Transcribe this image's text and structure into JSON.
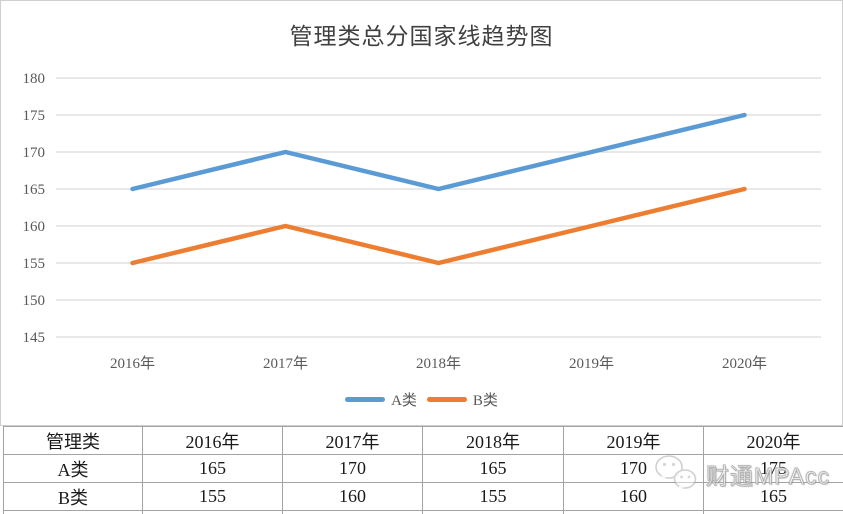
{
  "chart_data": {
    "type": "line",
    "title": "管理类总分国家线趋势图",
    "categories": [
      "2016年",
      "2017年",
      "2018年",
      "2019年",
      "2020年"
    ],
    "series": [
      {
        "name": "A类",
        "values": [
          165,
          170,
          165,
          170,
          175
        ],
        "color": "#5B9BD5"
      },
      {
        "name": "B类",
        "values": [
          155,
          160,
          155,
          160,
          165
        ],
        "color": "#ED7D31"
      }
    ],
    "xlabel": "",
    "ylabel": "",
    "ylim": [
      145,
      180
    ],
    "yticks": [
      180,
      175,
      170,
      165,
      160,
      155,
      150,
      145
    ],
    "grid": true,
    "legend_position": "bottom"
  },
  "table": {
    "header": [
      "管理类",
      "2016年",
      "2017年",
      "2018年",
      "2019年",
      "2020年"
    ],
    "rows": [
      [
        "A类",
        "165",
        "170",
        "165",
        "170",
        "175"
      ],
      [
        "B类",
        "155",
        "160",
        "155",
        "160",
        "165"
      ]
    ]
  },
  "watermark": {
    "icon": "wechat-logo",
    "text": "财通MPAcc"
  },
  "colors": {
    "series_a": "#5B9BD5",
    "series_b": "#ED7D31",
    "gridline": "#D9D9D9",
    "axis_text": "#595959",
    "title_text": "#404040",
    "table_border": "#A3A3A3",
    "chart_border": "#CFCFCF"
  }
}
